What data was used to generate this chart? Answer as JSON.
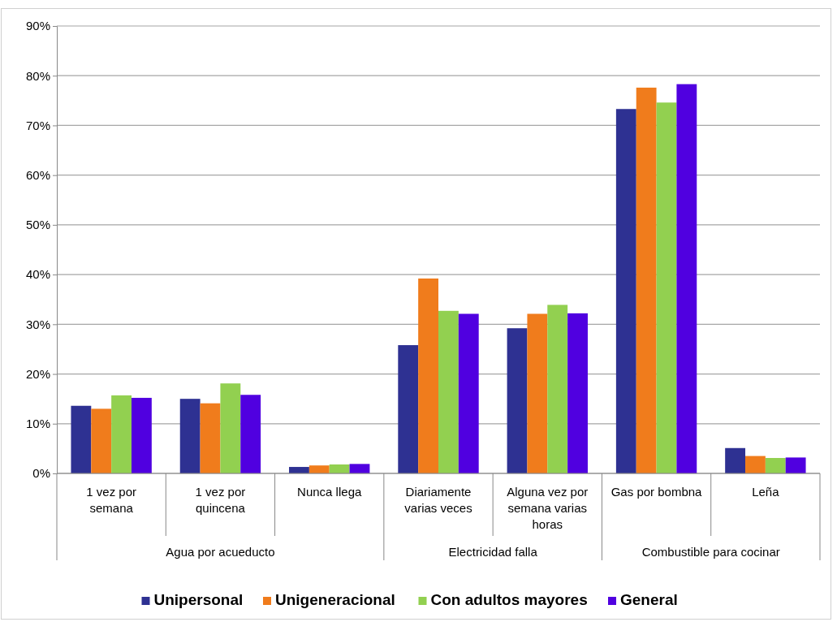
{
  "chart_data": {
    "type": "bar",
    "categories": [
      "1 vez por semana",
      "1 vez por quincena",
      "Nunca llega",
      "Diariamente varias veces",
      "Alguna vez por semana varias horas",
      "Gas por bombna",
      "Leña"
    ],
    "series": [
      {
        "name": "Unipersonal",
        "color": "#2e3192",
        "values": [
          13.6,
          15.0,
          1.3,
          25.8,
          29.2,
          73.3,
          5.1
        ]
      },
      {
        "name": "Unigeneracional",
        "color": "#f07c1c",
        "values": [
          13.0,
          14.1,
          1.6,
          39.2,
          32.1,
          77.6,
          3.5
        ]
      },
      {
        "name": "Con adultos mayores",
        "color": "#92d050",
        "values": [
          15.7,
          18.1,
          1.8,
          32.7,
          33.9,
          74.6,
          3.1
        ]
      },
      {
        "name": "General",
        "color": "#5000e0",
        "values": [
          15.2,
          15.8,
          1.9,
          32.1,
          32.2,
          78.3,
          3.2
        ]
      }
    ],
    "annotations": [
      "Agua por acueducto",
      "Electricidad falla",
      "Combustible para cocinar"
    ],
    "ylim": [
      0,
      90
    ],
    "yticks": [
      {
        "value": 0,
        "label": "0%"
      },
      {
        "value": 10,
        "label": "10%"
      },
      {
        "value": 20,
        "label": "20%"
      },
      {
        "value": 30,
        "label": "30%"
      },
      {
        "value": 40,
        "label": "40%"
      },
      {
        "value": 50,
        "label": "50%"
      },
      {
        "value": 60,
        "label": "60%"
      },
      {
        "value": 70,
        "label": "70%"
      },
      {
        "value": 80,
        "label": "80%"
      },
      {
        "value": 90,
        "label": "90%"
      }
    ],
    "grid": "y",
    "legend": "bottom"
  }
}
